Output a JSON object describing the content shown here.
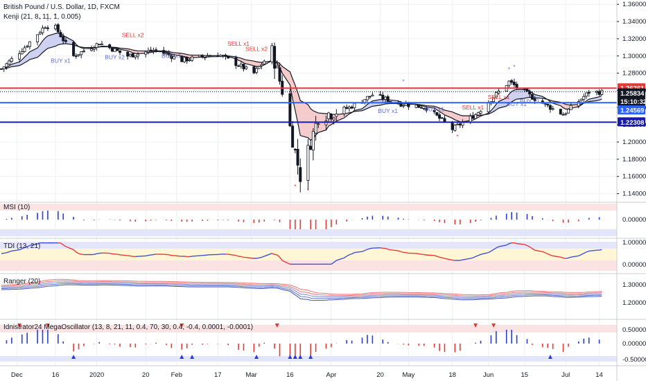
{
  "header": {
    "title": "British Pound / U.S. Dollar, 1D, FXCM",
    "indicator": "Kenji (21, 8, 11, 1, 0.005)"
  },
  "panes": {
    "msi": "MSI (10)",
    "tdi": "TDI (13, 21)",
    "ranger": "Ranger (20)",
    "mega": "Idnistrator24 MegaOscillator (13, 8, 21, 11, 0.4, 70, 30, 0.4, -0.4, 0.0001, -0.0001)"
  },
  "price_axis": {
    "ticks": [
      "1.36000",
      "1.34000",
      "1.32000",
      "1.30000",
      "1.28000",
      "1.26000",
      "1.24000",
      "1.22000",
      "1.20000",
      "1.18000",
      "1.16000",
      "1.14000"
    ]
  },
  "price_tags": [
    {
      "label": "1.26261",
      "color": "#e53935"
    },
    {
      "label": "1.25834",
      "color": "#131722"
    },
    {
      "label": "15:10:32",
      "color": "#131722"
    },
    {
      "label": "1.24569",
      "color": "#2962ff"
    },
    {
      "label": "1.22308",
      "color": "#1a1aa8"
    }
  ],
  "msi_axis": [
    "0.00000"
  ],
  "tdi_axis": [
    "1.00000",
    "0.00000"
  ],
  "ranger_axis": [
    "1.30000",
    "1.20000"
  ],
  "mega_axis": [
    "0.50000",
    "0.00000",
    "-0.50000"
  ],
  "time_axis": [
    "Dec",
    "16",
    "2020",
    "20",
    "Feb",
    "17",
    "Mar",
    "16",
    "Apr",
    "20",
    "May",
    "18",
    "Jun",
    "15",
    "Jul",
    "14"
  ],
  "signals": [
    {
      "text": "BUY x1",
      "kind": "buy"
    },
    {
      "text": "BUY x2",
      "kind": "buy"
    },
    {
      "text": "BUY x1",
      "kind": "buy"
    },
    {
      "text": "SELL x2",
      "kind": "sell"
    },
    {
      "text": "SELL x1",
      "kind": "sell"
    },
    {
      "text": "SELL x2",
      "kind": "sell"
    },
    {
      "text": "BUY x1",
      "kind": "buy"
    },
    {
      "text": "BUY x1",
      "kind": "buy"
    },
    {
      "text": "SELL x1",
      "kind": "sell"
    },
    {
      "text": "SELL x1",
      "kind": "sell"
    },
    {
      "text": "BUY x1",
      "kind": "buy"
    },
    {
      "text": "BUY x1",
      "kind": "buy"
    }
  ],
  "colors": {
    "bull": "#ffffff",
    "bear": "#131722",
    "resistance": "#e53935",
    "support_light": "#2962ff",
    "support_dark": "#1a1aa8",
    "hist_up": "#2a3bd6",
    "hist_down": "#e53935",
    "cloud_up": "#c7c9ef",
    "cloud_down": "#f3c2c2",
    "grid": "#eef0f4"
  },
  "chart_data": [
    {
      "type": "candlestick",
      "title": "British Pound / U.S. Dollar, 1D, FXCM",
      "ylim": [
        1.13,
        1.365
      ],
      "x_range": [
        "2019-11-25",
        "2020-07-16"
      ],
      "close_path": [
        [
          "2019-11-25",
          1.285
        ],
        [
          "2019-12-04",
          1.31
        ],
        [
          "2019-12-12",
          1.335
        ],
        [
          "2019-12-16",
          1.333
        ],
        [
          "2019-12-23",
          1.3
        ],
        [
          "2020-01-02",
          1.315
        ],
        [
          "2020-01-13",
          1.3
        ],
        [
          "2020-01-24",
          1.307
        ],
        [
          "2020-02-03",
          1.295
        ],
        [
          "2020-02-17",
          1.302
        ],
        [
          "2020-03-02",
          1.28
        ],
        [
          "2020-03-09",
          1.305
        ],
        [
          "2020-03-13",
          1.26
        ],
        [
          "2020-03-20",
          1.16
        ],
        [
          "2020-03-27",
          1.23
        ],
        [
          "2020-04-08",
          1.24
        ],
        [
          "2020-04-17",
          1.255
        ],
        [
          "2020-04-27",
          1.245
        ],
        [
          "2020-05-08",
          1.24
        ],
        [
          "2020-05-18",
          1.215
        ],
        [
          "2020-05-27",
          1.232
        ],
        [
          "2020-06-09",
          1.27
        ],
        [
          "2020-06-19",
          1.25
        ],
        [
          "2020-06-30",
          1.232
        ],
        [
          "2020-07-10",
          1.258
        ]
      ],
      "horizontal_levels": [
        1.26261,
        1.24569,
        1.22308
      ],
      "last_price": 1.25834
    },
    {
      "type": "histogram",
      "title": "MSI (10)",
      "ylim": [
        -1,
        1
      ]
    },
    {
      "type": "line",
      "title": "TDI (13, 21)",
      "ylim": [
        0,
        1
      ]
    },
    {
      "type": "line",
      "title": "Ranger (20)",
      "ylim": [
        1.12,
        1.36
      ]
    },
    {
      "type": "histogram",
      "title": "Idnistrator24 MegaOscillator (13, 8, 21, 11, 0.4, 70, 30, 0.4, -0.4, 0.0001, -0.0001)",
      "ylim": [
        -0.6,
        0.6
      ]
    }
  ]
}
